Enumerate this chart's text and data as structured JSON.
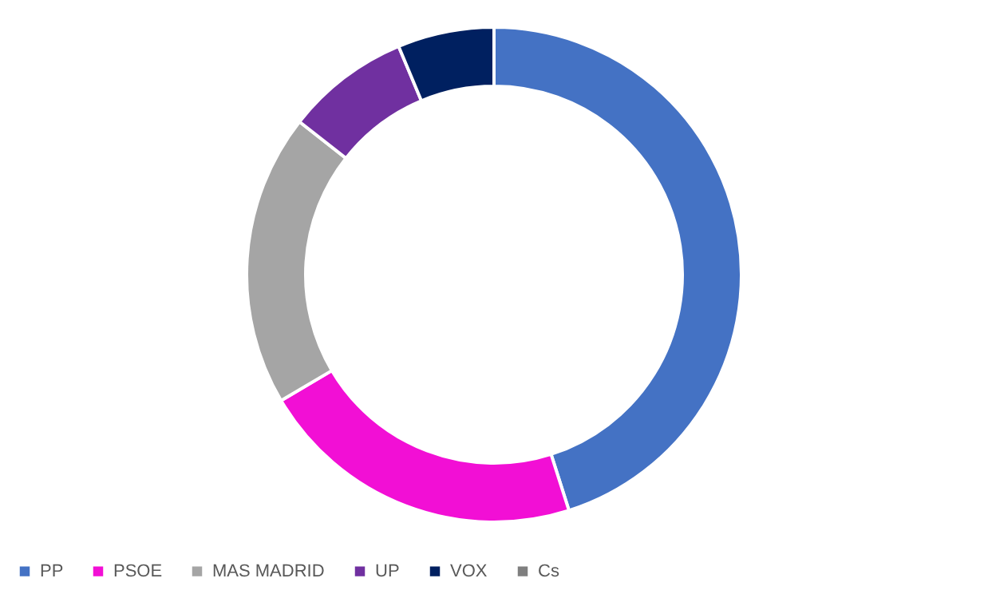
{
  "chart_data": {
    "type": "donut",
    "categories": [
      "PP",
      "PSOE",
      "MAS MADRID",
      "UP",
      "VOX",
      "Cs"
    ],
    "values": [
      45.1,
      21.4,
      19.1,
      8.1,
      6.3,
      0
    ],
    "colors": [
      "#4472c4",
      "#f20fd5",
      "#a5a5a5",
      "#7030a0",
      "#002060",
      "#7f7f7f"
    ],
    "legend": "bottom"
  }
}
